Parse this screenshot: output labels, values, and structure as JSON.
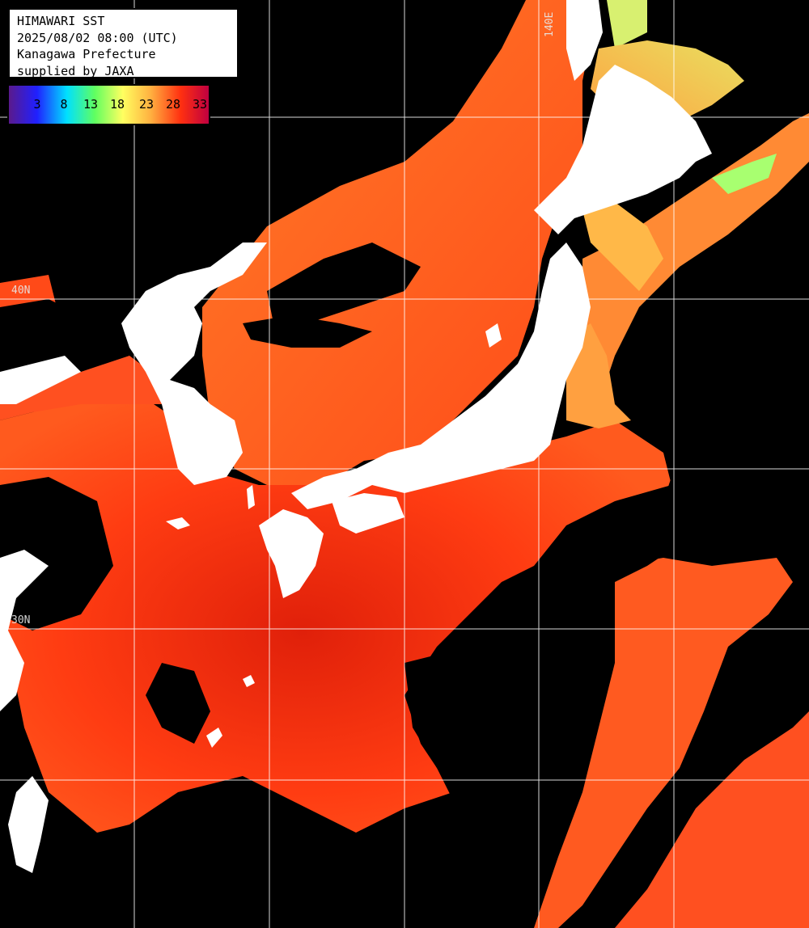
{
  "header": {
    "line1": "HIMAWARI SST",
    "line2": "2025/08/02 08:00 (UTC)",
    "line3": "Kanagawa Prefecture",
    "line4": "supplied by JAXA"
  },
  "legend": {
    "ticks": [
      "3",
      "8",
      "13",
      "18",
      "23",
      "28",
      "33"
    ],
    "colors": [
      "#5a1a8c",
      "#2020ff",
      "#00e0ff",
      "#60ff60",
      "#ffff60",
      "#ff9030",
      "#ff2000",
      "#c00040"
    ]
  },
  "grid_labels": {
    "lon_140": "140E",
    "lat_40": "40N",
    "lat_30": "30N"
  },
  "colors": {
    "land": "#ffffff",
    "cloud": "#000000",
    "sst_warm": "#ff3c10",
    "sst_hot": "#e01808",
    "sst_mid": "#ff6a20",
    "sst_cool": "#ffa040",
    "sst_cold": "#d8f070",
    "grid": "#ffffff"
  }
}
